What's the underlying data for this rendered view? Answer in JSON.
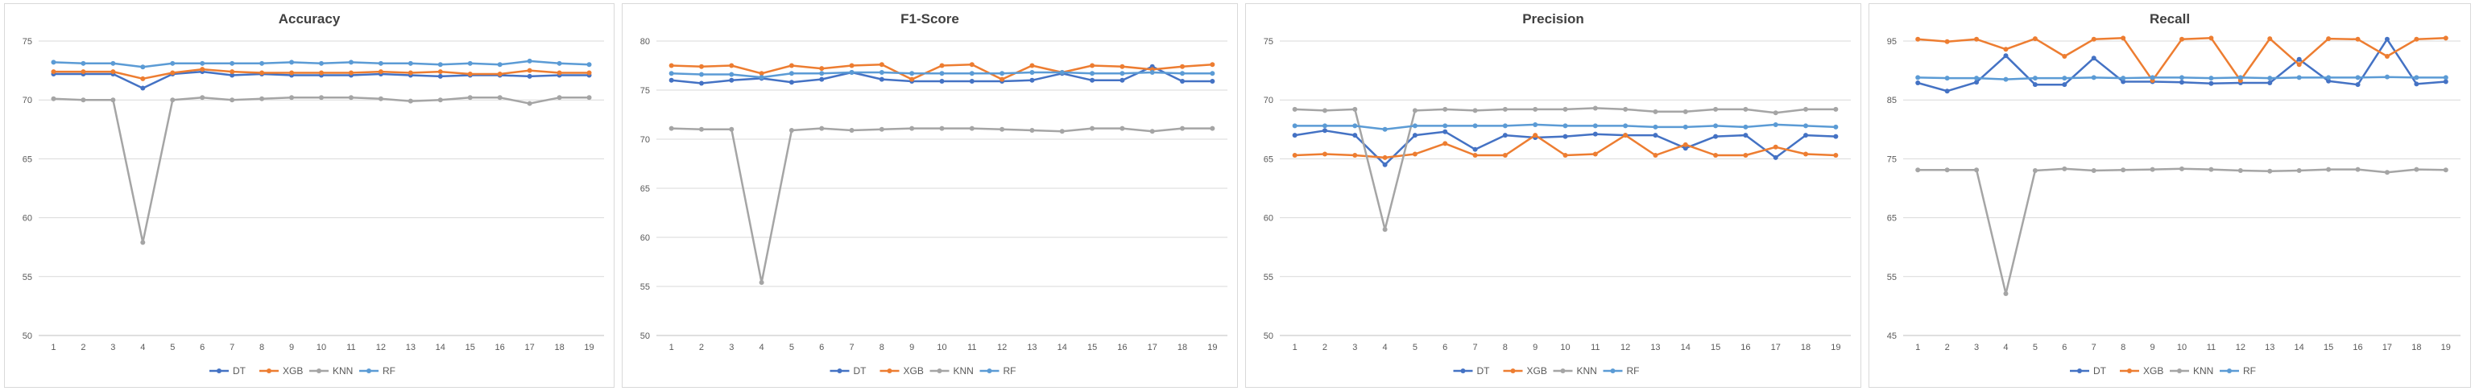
{
  "chart_data": [
    {
      "type": "line",
      "title": "Accuracy",
      "xlabel": "",
      "ylabel": "",
      "x": [
        1,
        2,
        3,
        4,
        5,
        6,
        7,
        8,
        9,
        10,
        11,
        12,
        13,
        14,
        15,
        16,
        17,
        18,
        19
      ],
      "ylim": [
        50,
        75
      ],
      "yticks": [
        50,
        55,
        60,
        65,
        70,
        75
      ],
      "grid": true,
      "legend_position": "bottom",
      "series": [
        {
          "name": "DT",
          "color": "#4472c4",
          "values": [
            72.2,
            72.2,
            72.2,
            71.0,
            72.2,
            72.4,
            72.1,
            72.2,
            72.1,
            72.1,
            72.1,
            72.2,
            72.1,
            72.0,
            72.1,
            72.1,
            72.0,
            72.1,
            72.1
          ]
        },
        {
          "name": "XGB",
          "color": "#ed7d31",
          "values": [
            72.4,
            72.4,
            72.4,
            71.8,
            72.3,
            72.6,
            72.4,
            72.3,
            72.3,
            72.3,
            72.3,
            72.4,
            72.3,
            72.4,
            72.2,
            72.2,
            72.5,
            72.3,
            72.3
          ]
        },
        {
          "name": "KNN",
          "color": "#a5a5a5",
          "values": [
            70.1,
            70.0,
            70.0,
            57.9,
            70.0,
            70.2,
            70.0,
            70.1,
            70.2,
            70.2,
            70.2,
            70.1,
            69.9,
            70.0,
            70.2,
            70.2,
            69.7,
            70.2,
            70.2
          ]
        },
        {
          "name": "RF",
          "color": "#5b9bd5",
          "values": [
            73.2,
            73.1,
            73.1,
            72.8,
            73.1,
            73.1,
            73.1,
            73.1,
            73.2,
            73.1,
            73.2,
            73.1,
            73.1,
            73.0,
            73.1,
            73.0,
            73.3,
            73.1,
            73.0
          ]
        }
      ]
    },
    {
      "type": "line",
      "title": "F1-Score",
      "xlabel": "",
      "ylabel": "",
      "x": [
        1,
        2,
        3,
        4,
        5,
        6,
        7,
        8,
        9,
        10,
        11,
        12,
        13,
        14,
        15,
        16,
        17,
        18,
        19
      ],
      "ylim": [
        50,
        80
      ],
      "yticks": [
        50,
        55,
        60,
        65,
        70,
        75,
        80
      ],
      "grid": true,
      "legend_position": "bottom",
      "series": [
        {
          "name": "DT",
          "color": "#4472c4",
          "values": [
            76.0,
            75.7,
            76.0,
            76.2,
            75.8,
            76.1,
            76.8,
            76.1,
            75.9,
            75.9,
            75.9,
            75.9,
            76.0,
            76.7,
            76.0,
            76.0,
            77.4,
            75.9,
            75.9
          ]
        },
        {
          "name": "XGB",
          "color": "#ed7d31",
          "values": [
            77.5,
            77.4,
            77.5,
            76.7,
            77.5,
            77.2,
            77.5,
            77.6,
            76.1,
            77.5,
            77.6,
            76.1,
            77.5,
            76.8,
            77.5,
            77.4,
            77.1,
            77.4,
            77.6
          ]
        },
        {
          "name": "KNN",
          "color": "#a5a5a5",
          "values": [
            71.1,
            71.0,
            71.0,
            55.4,
            70.9,
            71.1,
            70.9,
            71.0,
            71.1,
            71.1,
            71.1,
            71.0,
            70.9,
            70.8,
            71.1,
            71.1,
            70.8,
            71.1,
            71.1
          ]
        },
        {
          "name": "RF",
          "color": "#5b9bd5",
          "values": [
            76.7,
            76.6,
            76.6,
            76.3,
            76.7,
            76.7,
            76.8,
            76.8,
            76.7,
            76.7,
            76.7,
            76.7,
            76.8,
            76.8,
            76.7,
            76.7,
            76.8,
            76.7,
            76.7
          ]
        }
      ]
    },
    {
      "type": "line",
      "title": "Precision",
      "xlabel": "",
      "ylabel": "",
      "x": [
        1,
        2,
        3,
        4,
        5,
        6,
        7,
        8,
        9,
        10,
        11,
        12,
        13,
        14,
        15,
        16,
        17,
        18,
        19
      ],
      "ylim": [
        50,
        75
      ],
      "yticks": [
        50,
        55,
        60,
        65,
        70,
        75
      ],
      "grid": true,
      "legend_position": "bottom",
      "series": [
        {
          "name": "DT",
          "color": "#4472c4",
          "values": [
            67.0,
            67.4,
            67.0,
            64.5,
            67.0,
            67.3,
            65.8,
            67.0,
            66.8,
            66.9,
            67.1,
            67.0,
            67.0,
            65.9,
            66.9,
            67.0,
            65.1,
            67.0,
            66.9
          ]
        },
        {
          "name": "XGB",
          "color": "#ed7d31",
          "values": [
            65.3,
            65.4,
            65.3,
            65.1,
            65.4,
            66.3,
            65.3,
            65.3,
            67.0,
            65.3,
            65.4,
            67.0,
            65.3,
            66.2,
            65.3,
            65.3,
            66.0,
            65.4,
            65.3
          ]
        },
        {
          "name": "KNN",
          "color": "#a5a5a5",
          "values": [
            69.2,
            69.1,
            69.2,
            59.0,
            69.1,
            69.2,
            69.1,
            69.2,
            69.2,
            69.2,
            69.3,
            69.2,
            69.0,
            69.0,
            69.2,
            69.2,
            68.9,
            69.2,
            69.2
          ]
        },
        {
          "name": "RF",
          "color": "#5b9bd5",
          "values": [
            67.8,
            67.8,
            67.8,
            67.5,
            67.8,
            67.8,
            67.8,
            67.8,
            67.9,
            67.8,
            67.8,
            67.8,
            67.7,
            67.7,
            67.8,
            67.7,
            67.9,
            67.8,
            67.7
          ]
        }
      ]
    },
    {
      "type": "line",
      "title": "Recall",
      "xlabel": "",
      "ylabel": "",
      "x": [
        1,
        2,
        3,
        4,
        5,
        6,
        7,
        8,
        9,
        10,
        11,
        12,
        13,
        14,
        15,
        16,
        17,
        18,
        19
      ],
      "ylim": [
        45,
        95
      ],
      "yticks": [
        45,
        55,
        65,
        75,
        85,
        95
      ],
      "grid": true,
      "legend_position": "bottom",
      "series": [
        {
          "name": "DT",
          "color": "#4472c4",
          "values": [
            87.9,
            86.5,
            88.0,
            92.5,
            87.6,
            87.6,
            92.1,
            88.1,
            88.1,
            88.0,
            87.8,
            87.9,
            87.9,
            91.9,
            88.2,
            87.6,
            95.3,
            87.7,
            88.1
          ]
        },
        {
          "name": "XGB",
          "color": "#ed7d31",
          "values": [
            95.3,
            94.9,
            95.3,
            93.6,
            95.4,
            92.4,
            95.3,
            95.5,
            88.3,
            95.3,
            95.5,
            88.3,
            95.4,
            91.0,
            95.4,
            95.3,
            92.4,
            95.3,
            95.5
          ]
        },
        {
          "name": "KNN",
          "color": "#a5a5a5",
          "values": [
            73.1,
            73.1,
            73.1,
            52.1,
            73.0,
            73.3,
            73.0,
            73.1,
            73.2,
            73.3,
            73.2,
            73.0,
            72.9,
            73.0,
            73.2,
            73.2,
            72.7,
            73.2,
            73.1
          ]
        },
        {
          "name": "RF",
          "color": "#5b9bd5",
          "values": [
            88.8,
            88.7,
            88.7,
            88.5,
            88.7,
            88.7,
            88.8,
            88.7,
            88.8,
            88.8,
            88.7,
            88.8,
            88.7,
            88.8,
            88.8,
            88.8,
            88.9,
            88.8,
            88.8
          ]
        }
      ]
    }
  ]
}
